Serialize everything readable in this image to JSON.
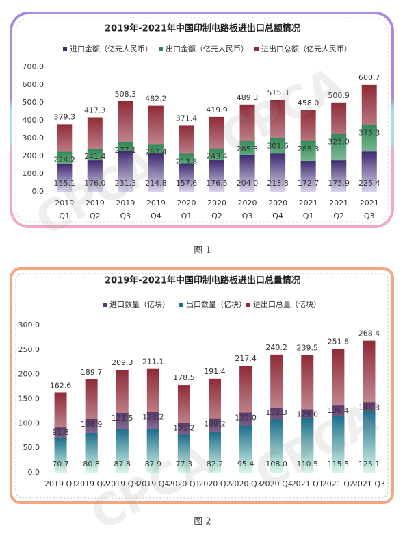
{
  "chart_data": [
    {
      "type": "bar",
      "title": "2019年-2021年中国印制电路板进出口总额情况",
      "caption": "图 1",
      "watermark": "CPCA",
      "categories": [
        "2019 Q1",
        "2019 Q2",
        "2019 Q3",
        "2019 Q4",
        "2020 Q1",
        "2020 Q2",
        "2020 Q3",
        "2020 Q4",
        "2021 Q1",
        "2021 Q2",
        "2021 Q3"
      ],
      "series": [
        {
          "name": "进口金额（亿元人民币）",
          "color": "#3f2a70",
          "values": [
            155.1,
            176.0,
            231.3,
            214.8,
            157.6,
            176.5,
            204.0,
            213.8,
            172.7,
            175.9,
            225.4
          ],
          "value_labels": [
            "155.1",
            "176.0",
            "231.3",
            "214.8",
            "157.6",
            "176.5",
            "204.0",
            "213.8",
            "172.7",
            "175.9",
            "225.4"
          ]
        },
        {
          "name": "出口金额（亿元人民币）",
          "color": "#2f8a55",
          "values": [
            224.2,
            241.4,
            277.1,
            267.4,
            213.8,
            243.4,
            285.3,
            301.6,
            285.3,
            325.0,
            375.3
          ],
          "value_labels": [
            "224.2",
            "241.4",
            "277.1",
            "267.4",
            "213.8",
            "243.4",
            "285.3",
            "301.6",
            "285.3",
            "325.0",
            "375.3"
          ]
        },
        {
          "name": "进出口总额（亿元人民币）",
          "color": "#8e2b38",
          "values": [
            379.3,
            417.3,
            508.3,
            482.2,
            371.4,
            419.9,
            489.3,
            515.3,
            458.0,
            500.9,
            600.7
          ],
          "value_labels": [
            "379.3",
            "417.3",
            "508.3",
            "482.2",
            "371.4",
            "419.9",
            "489.3",
            "515.3",
            "458.0",
            "500.9",
            "600.7"
          ]
        }
      ],
      "ylim": [
        0,
        700
      ],
      "yticks": [
        {
          "value": 0,
          "label": "0.0"
        },
        {
          "value": 100,
          "label": "100.0"
        },
        {
          "value": 200,
          "label": "200.0"
        },
        {
          "value": 300,
          "label": "300.0"
        },
        {
          "value": 400,
          "label": "400.0"
        },
        {
          "value": 500,
          "label": "500.0"
        },
        {
          "value": 600,
          "label": "600.0"
        },
        {
          "value": 700,
          "label": "700.0"
        }
      ],
      "grid": false
    },
    {
      "type": "bar",
      "title": "2019年-2021年中国印制电路板进出口总量情况",
      "caption": "图 2",
      "watermark": "CPCA",
      "categories": [
        "2019 Q1",
        "2019 Q2",
        "2019 Q3",
        "2019 Q4",
        "2020 Q1",
        "2020 Q2",
        "2020 Q3",
        "2020 Q4",
        "2021 Q1",
        "2021 Q2",
        "2021 Q3"
      ],
      "series": [
        {
          "name": "进口数量（亿块）",
          "color": "#5b3b6e",
          "values": [
            91.8,
            108.9,
            121.5,
            123.2,
            101.2,
            109.2,
            122.0,
            132.3,
            129.0,
            136.4,
            143.3
          ],
          "value_labels": [
            "91.8",
            "108.9",
            "121.5",
            "123.2",
            "101.2",
            "109.2",
            "122.0",
            "132.3",
            "129.0",
            "136.4",
            "143.3"
          ]
        },
        {
          "name": "出口数量（亿块）",
          "color": "#1d6e8c",
          "values": [
            70.7,
            80.8,
            87.8,
            87.9,
            77.3,
            82.2,
            95.4,
            108.0,
            110.5,
            115.5,
            125.1
          ],
          "value_labels": [
            "70.7",
            "80.8",
            "87.8",
            "87.9",
            "77.3",
            "82.2",
            "95.4",
            "108.0",
            "110.5",
            "115.5",
            "125.1"
          ]
        },
        {
          "name": "进出口总量（亿块）",
          "color": "#8e2b38",
          "values": [
            162.6,
            189.7,
            209.3,
            211.1,
            178.5,
            191.4,
            217.4,
            240.2,
            239.5,
            251.8,
            268.4
          ],
          "value_labels": [
            "162.6",
            "189.7",
            "209.3",
            "211.1",
            "178.5",
            "191.4",
            "217.4",
            "240.2",
            "239.5",
            "251.8",
            "268.4"
          ]
        }
      ],
      "ylim": [
        0,
        300
      ],
      "yticks": [
        {
          "value": 0,
          "label": "0.0"
        },
        {
          "value": 50,
          "label": "50.0"
        },
        {
          "value": 100,
          "label": "100.0"
        },
        {
          "value": 150,
          "label": "150.0"
        },
        {
          "value": 200,
          "label": "200.0"
        },
        {
          "value": 250,
          "label": "250.0"
        },
        {
          "value": 300,
          "label": "300.0"
        }
      ],
      "grid": false
    }
  ]
}
